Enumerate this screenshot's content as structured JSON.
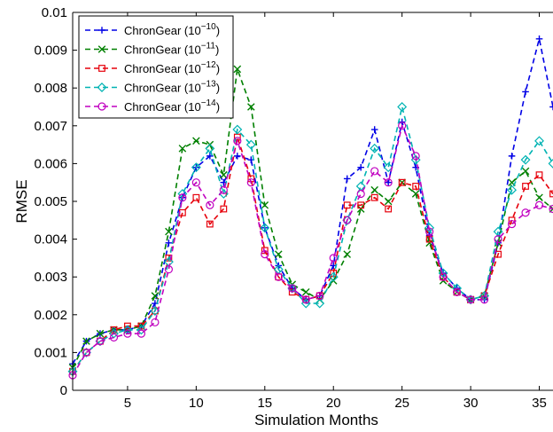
{
  "chart_data": {
    "type": "line",
    "xlabel": "Simulation Months",
    "ylabel": "RMSE",
    "xlim": [
      1,
      36
    ],
    "ylim": [
      0,
      0.01
    ],
    "xticks": [
      5,
      10,
      15,
      20,
      25,
      30,
      35
    ],
    "yticks": [
      0,
      0.001,
      0.002,
      0.003,
      0.004,
      0.005,
      0.006,
      0.007,
      0.008,
      0.009,
      0.01
    ],
    "ytick_labels": [
      "0",
      "0.001",
      "0.002",
      "0.003",
      "0.004",
      "0.005",
      "0.006",
      "0.007",
      "0.008",
      "0.009",
      "0.01"
    ],
    "grid": false,
    "legend_position": "top-left",
    "x": [
      1,
      2,
      3,
      4,
      5,
      6,
      7,
      8,
      9,
      10,
      11,
      12,
      13,
      14,
      15,
      16,
      17,
      18,
      19,
      20,
      21,
      22,
      23,
      24,
      25,
      26,
      27,
      28,
      29,
      30,
      31,
      32,
      33,
      34,
      35,
      36
    ],
    "series": [
      {
        "name": "ChronGear (10",
        "exp": "−10",
        "color": "#0000e6",
        "marker": "plus",
        "values": [
          0.0007,
          0.0013,
          0.0015,
          0.0016,
          0.0016,
          0.0017,
          0.0023,
          0.0039,
          0.0051,
          0.0059,
          0.0062,
          0.0055,
          0.0062,
          0.0061,
          0.0043,
          0.0033,
          0.0027,
          0.0024,
          0.0025,
          0.0033,
          0.0056,
          0.0059,
          0.0069,
          0.0055,
          0.0071,
          0.0059,
          0.0041,
          0.0031,
          0.0027,
          0.0024,
          0.0024,
          0.0039,
          0.0062,
          0.0079,
          0.0093,
          0.0075
        ]
      },
      {
        "name": "ChronGear (10",
        "exp": "−11",
        "color": "#008000",
        "marker": "x",
        "values": [
          0.0006,
          0.0013,
          0.0015,
          0.0016,
          0.0016,
          0.0017,
          0.0025,
          0.0042,
          0.0064,
          0.0066,
          0.0065,
          0.0057,
          0.0085,
          0.0075,
          0.0049,
          0.0036,
          0.0028,
          0.0026,
          0.0024,
          0.0029,
          0.0036,
          0.0048,
          0.0053,
          0.005,
          0.0055,
          0.0052,
          0.0039,
          0.0029,
          0.0026,
          0.0024,
          0.0025,
          0.0039,
          0.0055,
          0.0058,
          0.0051,
          0.0048
        ]
      },
      {
        "name": "ChronGear (10",
        "exp": "−12",
        "color": "#e6000b",
        "marker": "square",
        "values": [
          0.0005,
          0.001,
          0.0013,
          0.0016,
          0.0017,
          0.0017,
          0.0021,
          0.0035,
          0.0047,
          0.0051,
          0.0044,
          0.0048,
          0.0067,
          0.0056,
          0.0037,
          0.003,
          0.0026,
          0.0024,
          0.0025,
          0.0031,
          0.0049,
          0.0049,
          0.0051,
          0.0048,
          0.0055,
          0.0054,
          0.004,
          0.003,
          0.0026,
          0.0024,
          0.0025,
          0.0036,
          0.0045,
          0.0054,
          0.0057,
          0.0052
        ]
      },
      {
        "name": "ChronGear (10",
        "exp": "−13",
        "color": "#00b3b3",
        "marker": "diamond",
        "values": [
          0.0005,
          0.001,
          0.0013,
          0.0015,
          0.0016,
          0.0016,
          0.0021,
          0.0034,
          0.0052,
          0.0059,
          0.0064,
          0.0052,
          0.0069,
          0.0065,
          0.0043,
          0.0032,
          0.0027,
          0.0023,
          0.0023,
          0.003,
          0.0045,
          0.0054,
          0.0064,
          0.0059,
          0.0075,
          0.0061,
          0.0043,
          0.0031,
          0.0027,
          0.0024,
          0.0025,
          0.0042,
          0.0053,
          0.0061,
          0.0066,
          0.006
        ]
      },
      {
        "name": "ChronGear (10",
        "exp": "−14",
        "color": "#c000c0",
        "marker": "circle",
        "values": [
          0.0004,
          0.001,
          0.0013,
          0.0014,
          0.0015,
          0.0015,
          0.0018,
          0.0032,
          0.0051,
          0.0055,
          0.0049,
          0.0053,
          0.0066,
          0.0055,
          0.0036,
          0.003,
          0.0027,
          0.0024,
          0.0025,
          0.0035,
          0.0045,
          0.0052,
          0.0058,
          0.0055,
          0.007,
          0.0062,
          0.0042,
          0.003,
          0.0026,
          0.0024,
          0.0024,
          0.004,
          0.0044,
          0.0047,
          0.0049,
          0.0048
        ]
      }
    ]
  }
}
